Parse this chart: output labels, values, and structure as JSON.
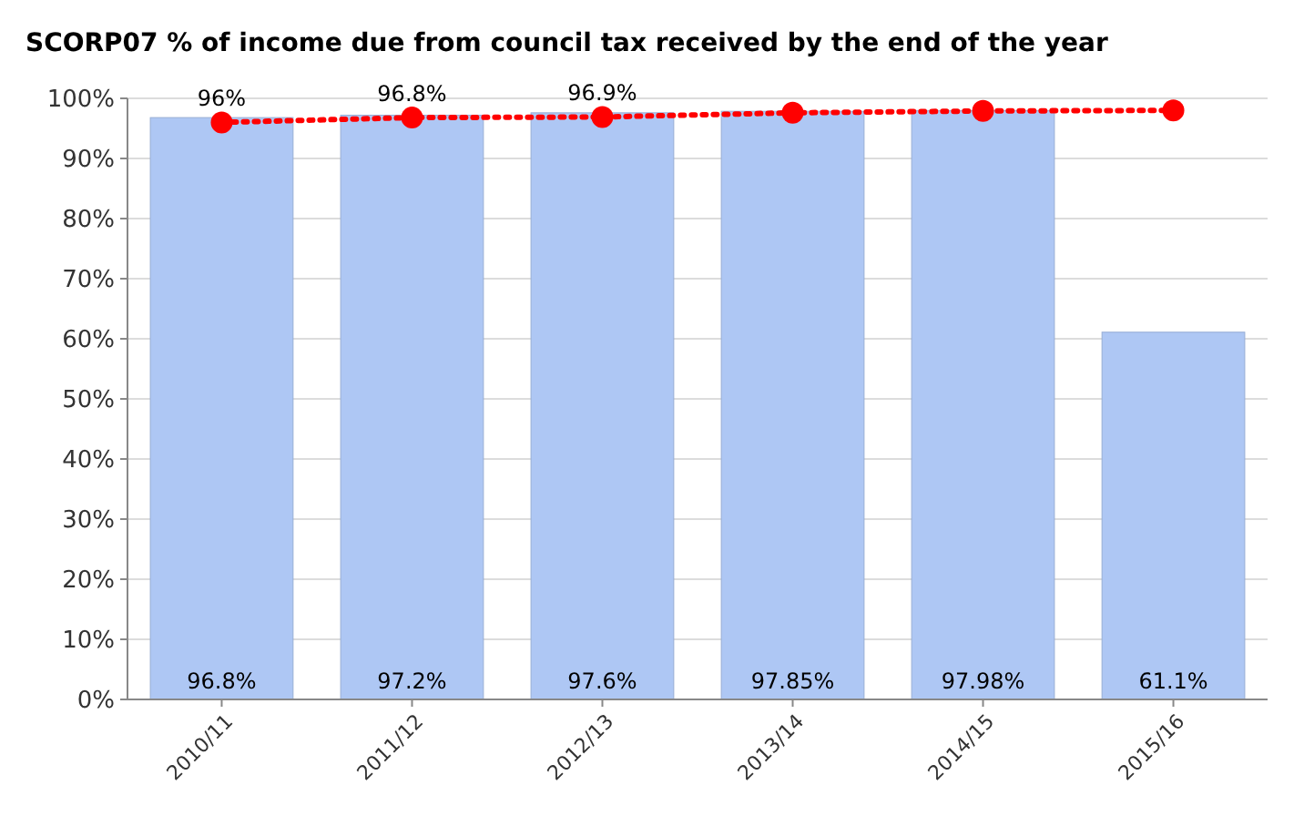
{
  "chart_data": {
    "type": "bar",
    "title": "SCORP07 % of income due from council tax received by the end of the year",
    "categories": [
      "2010/11",
      "2011/12",
      "2012/13",
      "2013/14",
      "2014/15",
      "2015/16"
    ],
    "series": [
      {
        "color": "#aec7f4",
        "values": [
          96.8,
          97.2,
          97.6,
          97.85,
          97.98,
          61.1
        ],
        "value_labels": [
          "96.8%",
          "97.2%",
          "97.6%",
          "97.85%",
          "97.98%",
          "61.1%"
        ]
      },
      {
        "type": "line",
        "color": "#ff0000",
        "values": [
          96,
          96.8,
          96.9,
          97.6,
          97.9,
          98
        ],
        "value_labels": [
          "96%",
          "96.8%",
          "96.9%",
          null,
          null,
          null
        ],
        "marker": "circle",
        "line_style": "dotted"
      }
    ],
    "ylim": [
      0,
      100
    ],
    "yticks": [
      {
        "value": 0,
        "label": "0%"
      },
      {
        "value": 10,
        "label": "10%"
      },
      {
        "value": 20,
        "label": "20%"
      },
      {
        "value": 30,
        "label": "30%"
      },
      {
        "value": 40,
        "label": "40%"
      },
      {
        "value": 50,
        "label": "50%"
      },
      {
        "value": 60,
        "label": "60%"
      },
      {
        "value": 70,
        "label": "70%"
      },
      {
        "value": 80,
        "label": "80%"
      },
      {
        "value": 90,
        "label": "90%"
      },
      {
        "value": 100,
        "label": "100%"
      }
    ],
    "grid": "y"
  }
}
